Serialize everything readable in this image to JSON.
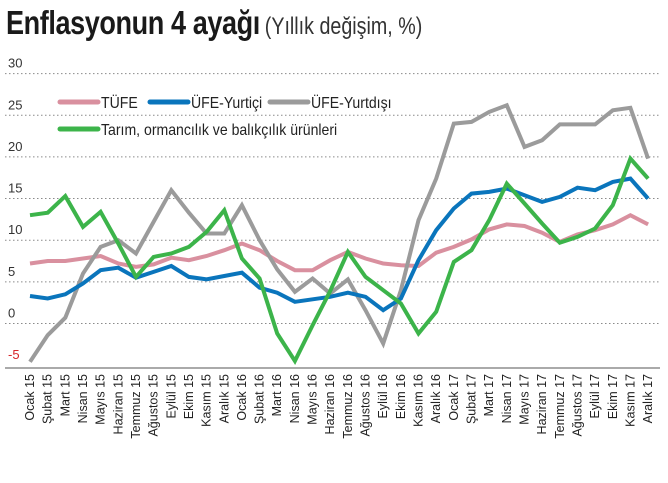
{
  "chart_data": {
    "type": "line",
    "title": "Enflasyonun 4 ayağı",
    "subtitle": "(Yıllık değişim, %)",
    "xlabel": "",
    "ylabel": "",
    "ylim": [
      -5,
      30
    ],
    "yticks": [
      30,
      25,
      20,
      15,
      10,
      5,
      0,
      -5
    ],
    "ytick_labels": [
      "30",
      "25",
      "20",
      "15",
      "10",
      "5",
      "0",
      "-5"
    ],
    "negative_tick_color": "#d7262b",
    "grid": true,
    "legend_position": "top",
    "categories": [
      "Ocak 15",
      "Şubat 15",
      "Mart 15",
      "Nisan 15",
      "Mayıs 15",
      "Haziran 15",
      "Temmuz 15",
      "Ağustos 15",
      "Eylül 15",
      "Ekim 15",
      "Kasım 15",
      "Aralık 15",
      "Ocak 16",
      "Şubat 16",
      "Mart 16",
      "Nisan 16",
      "Mayıs 16",
      "Haziran 16",
      "Temmuz 16",
      "Ağustos 16",
      "Eylül 16",
      "Ekim 16",
      "Kasım 16",
      "Aralık 16",
      "Ocak 17",
      "Şubat 17",
      "Mart 17",
      "Nisan 17",
      "Mayıs 17",
      "Haziran 17",
      "Temmuz 17",
      "Ağustos 17",
      "Eylül 17",
      "Ekim 17",
      "Kasım 17",
      "Aralık 17"
    ],
    "series": [
      {
        "name": "TÜFE",
        "color": "#d9909f",
        "values": [
          7.2,
          7.5,
          7.5,
          7.8,
          8.1,
          7.2,
          6.8,
          7.1,
          7.9,
          7.6,
          8.1,
          8.8,
          9.6,
          8.8,
          7.5,
          6.4,
          6.4,
          7.6,
          8.6,
          7.8,
          7.2,
          7.0,
          6.9,
          8.5,
          9.2,
          10.1,
          11.3,
          11.9,
          11.7,
          10.9,
          9.8,
          10.7,
          11.2,
          11.9,
          13.0,
          11.9
        ]
      },
      {
        "name": "ÜFE-Yurtiçi",
        "color": "#0a75bc",
        "values": [
          3.3,
          3.0,
          3.5,
          4.8,
          6.4,
          6.7,
          5.5,
          6.2,
          6.9,
          5.6,
          5.3,
          5.7,
          6.1,
          4.3,
          3.7,
          2.6,
          2.9,
          3.2,
          3.7,
          3.2,
          1.6,
          3.0,
          7.6,
          11.2,
          13.8,
          15.6,
          15.8,
          16.2,
          15.4,
          14.6,
          15.2,
          16.3,
          16.0,
          17.0,
          17.4,
          15.0
        ]
      },
      {
        "name": "ÜFE-Yurtdışı",
        "color": "#9b9b9b",
        "values": [
          -4.6,
          -1.4,
          0.7,
          6.0,
          9.2,
          10.0,
          8.4,
          12.2,
          16.0,
          13.3,
          10.8,
          10.8,
          14.2,
          10.0,
          6.5,
          3.8,
          5.4,
          3.6,
          5.3,
          1.6,
          -2.4,
          4.0,
          12.4,
          17.4,
          24.0,
          24.2,
          25.4,
          26.2,
          21.2,
          22.0,
          23.9,
          23.9,
          23.9,
          25.6,
          25.9,
          19.8
        ]
      },
      {
        "name": "Tarım, ormancılık ve balıkçılık ürünleri",
        "color": "#3cb44a",
        "values": [
          13.0,
          13.3,
          15.3,
          11.6,
          13.4,
          9.6,
          5.6,
          8.0,
          8.4,
          9.2,
          11.0,
          13.6,
          7.8,
          5.4,
          -1.2,
          -4.5,
          -0.2,
          3.9,
          8.6,
          5.6,
          4.0,
          2.4,
          -1.2,
          1.4,
          7.4,
          8.8,
          12.4,
          16.8,
          14.4,
          12.0,
          9.7,
          10.4,
          11.4,
          14.2,
          19.8,
          17.4
        ]
      }
    ]
  }
}
